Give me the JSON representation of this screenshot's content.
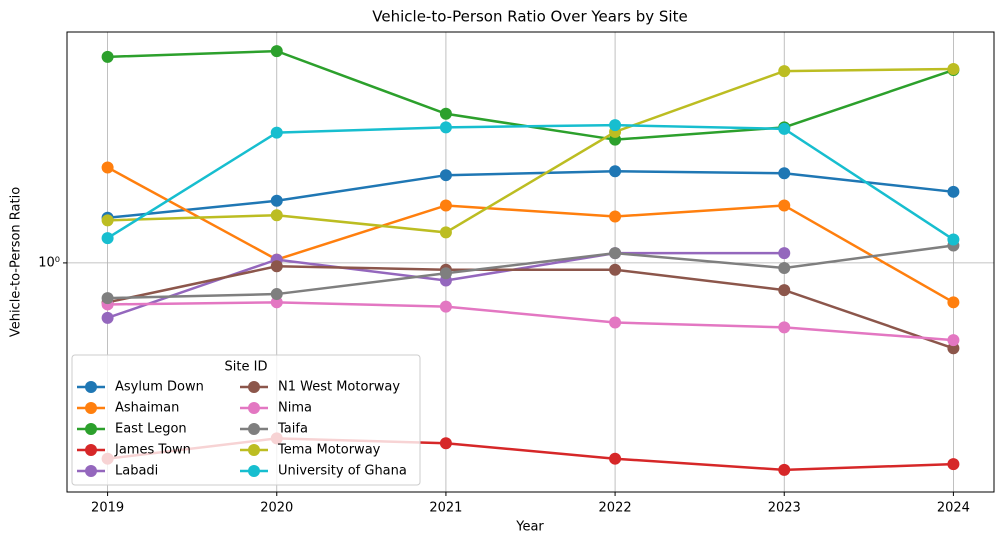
{
  "chart_data": {
    "type": "line",
    "title": "Vehicle-to-Person Ratio Over Years by Site",
    "x_label": "Year",
    "y_label": "Vehicle-to-Person Ratio",
    "x": [
      2019,
      2020,
      2021,
      2022,
      2023,
      2024
    ],
    "xlim": [
      2018.76,
      2024.24
    ],
    "xticks": [
      2019,
      2020,
      2021,
      2022,
      2023,
      2024
    ],
    "ylim": [
      0.254,
      3.98
    ],
    "yscale": "log",
    "yticks": [
      {
        "value": 1,
        "label": "10⁰"
      }
    ],
    "grid": true,
    "legend_title": "Site ID",
    "legend_loc": "lower left",
    "series": [
      {
        "name": "Asylum Down",
        "color": "#1f77b4",
        "values": [
          1.31,
          1.45,
          1.69,
          1.73,
          1.71,
          1.53
        ]
      },
      {
        "name": "Ashaiman",
        "color": "#ff7f0e",
        "values": [
          1.77,
          1.02,
          1.41,
          1.32,
          1.41,
          0.79
        ]
      },
      {
        "name": "East Legon",
        "color": "#2ca02c",
        "values": [
          3.43,
          3.55,
          2.44,
          2.09,
          2.25,
          3.17
        ]
      },
      {
        "name": "James Town",
        "color": "#d62728",
        "values": [
          0.31,
          0.35,
          0.34,
          0.31,
          0.29,
          0.3
        ]
      },
      {
        "name": "Labadi",
        "color": "#9467bd",
        "values": [
          0.72,
          1.02,
          0.9,
          1.06,
          1.06,
          null
        ]
      },
      {
        "name": "N1 West Motorway",
        "color": "#8c564b",
        "values": [
          0.79,
          0.98,
          0.96,
          0.96,
          0.85,
          0.6
        ]
      },
      {
        "name": "Nima",
        "color": "#e377c2",
        "values": [
          0.78,
          0.79,
          0.77,
          0.7,
          0.68,
          0.63
        ]
      },
      {
        "name": "Taifa",
        "color": "#7f7f7f",
        "values": [
          0.81,
          0.83,
          0.94,
          1.06,
          0.97,
          1.11
        ]
      },
      {
        "name": "Tema Motorway",
        "color": "#bcbd22",
        "values": [
          1.29,
          1.33,
          1.2,
          2.19,
          3.15,
          3.19
        ]
      },
      {
        "name": "University of Ghana",
        "color": "#17becf",
        "values": [
          1.16,
          2.18,
          2.25,
          2.28,
          2.23,
          1.15
        ]
      }
    ]
  }
}
